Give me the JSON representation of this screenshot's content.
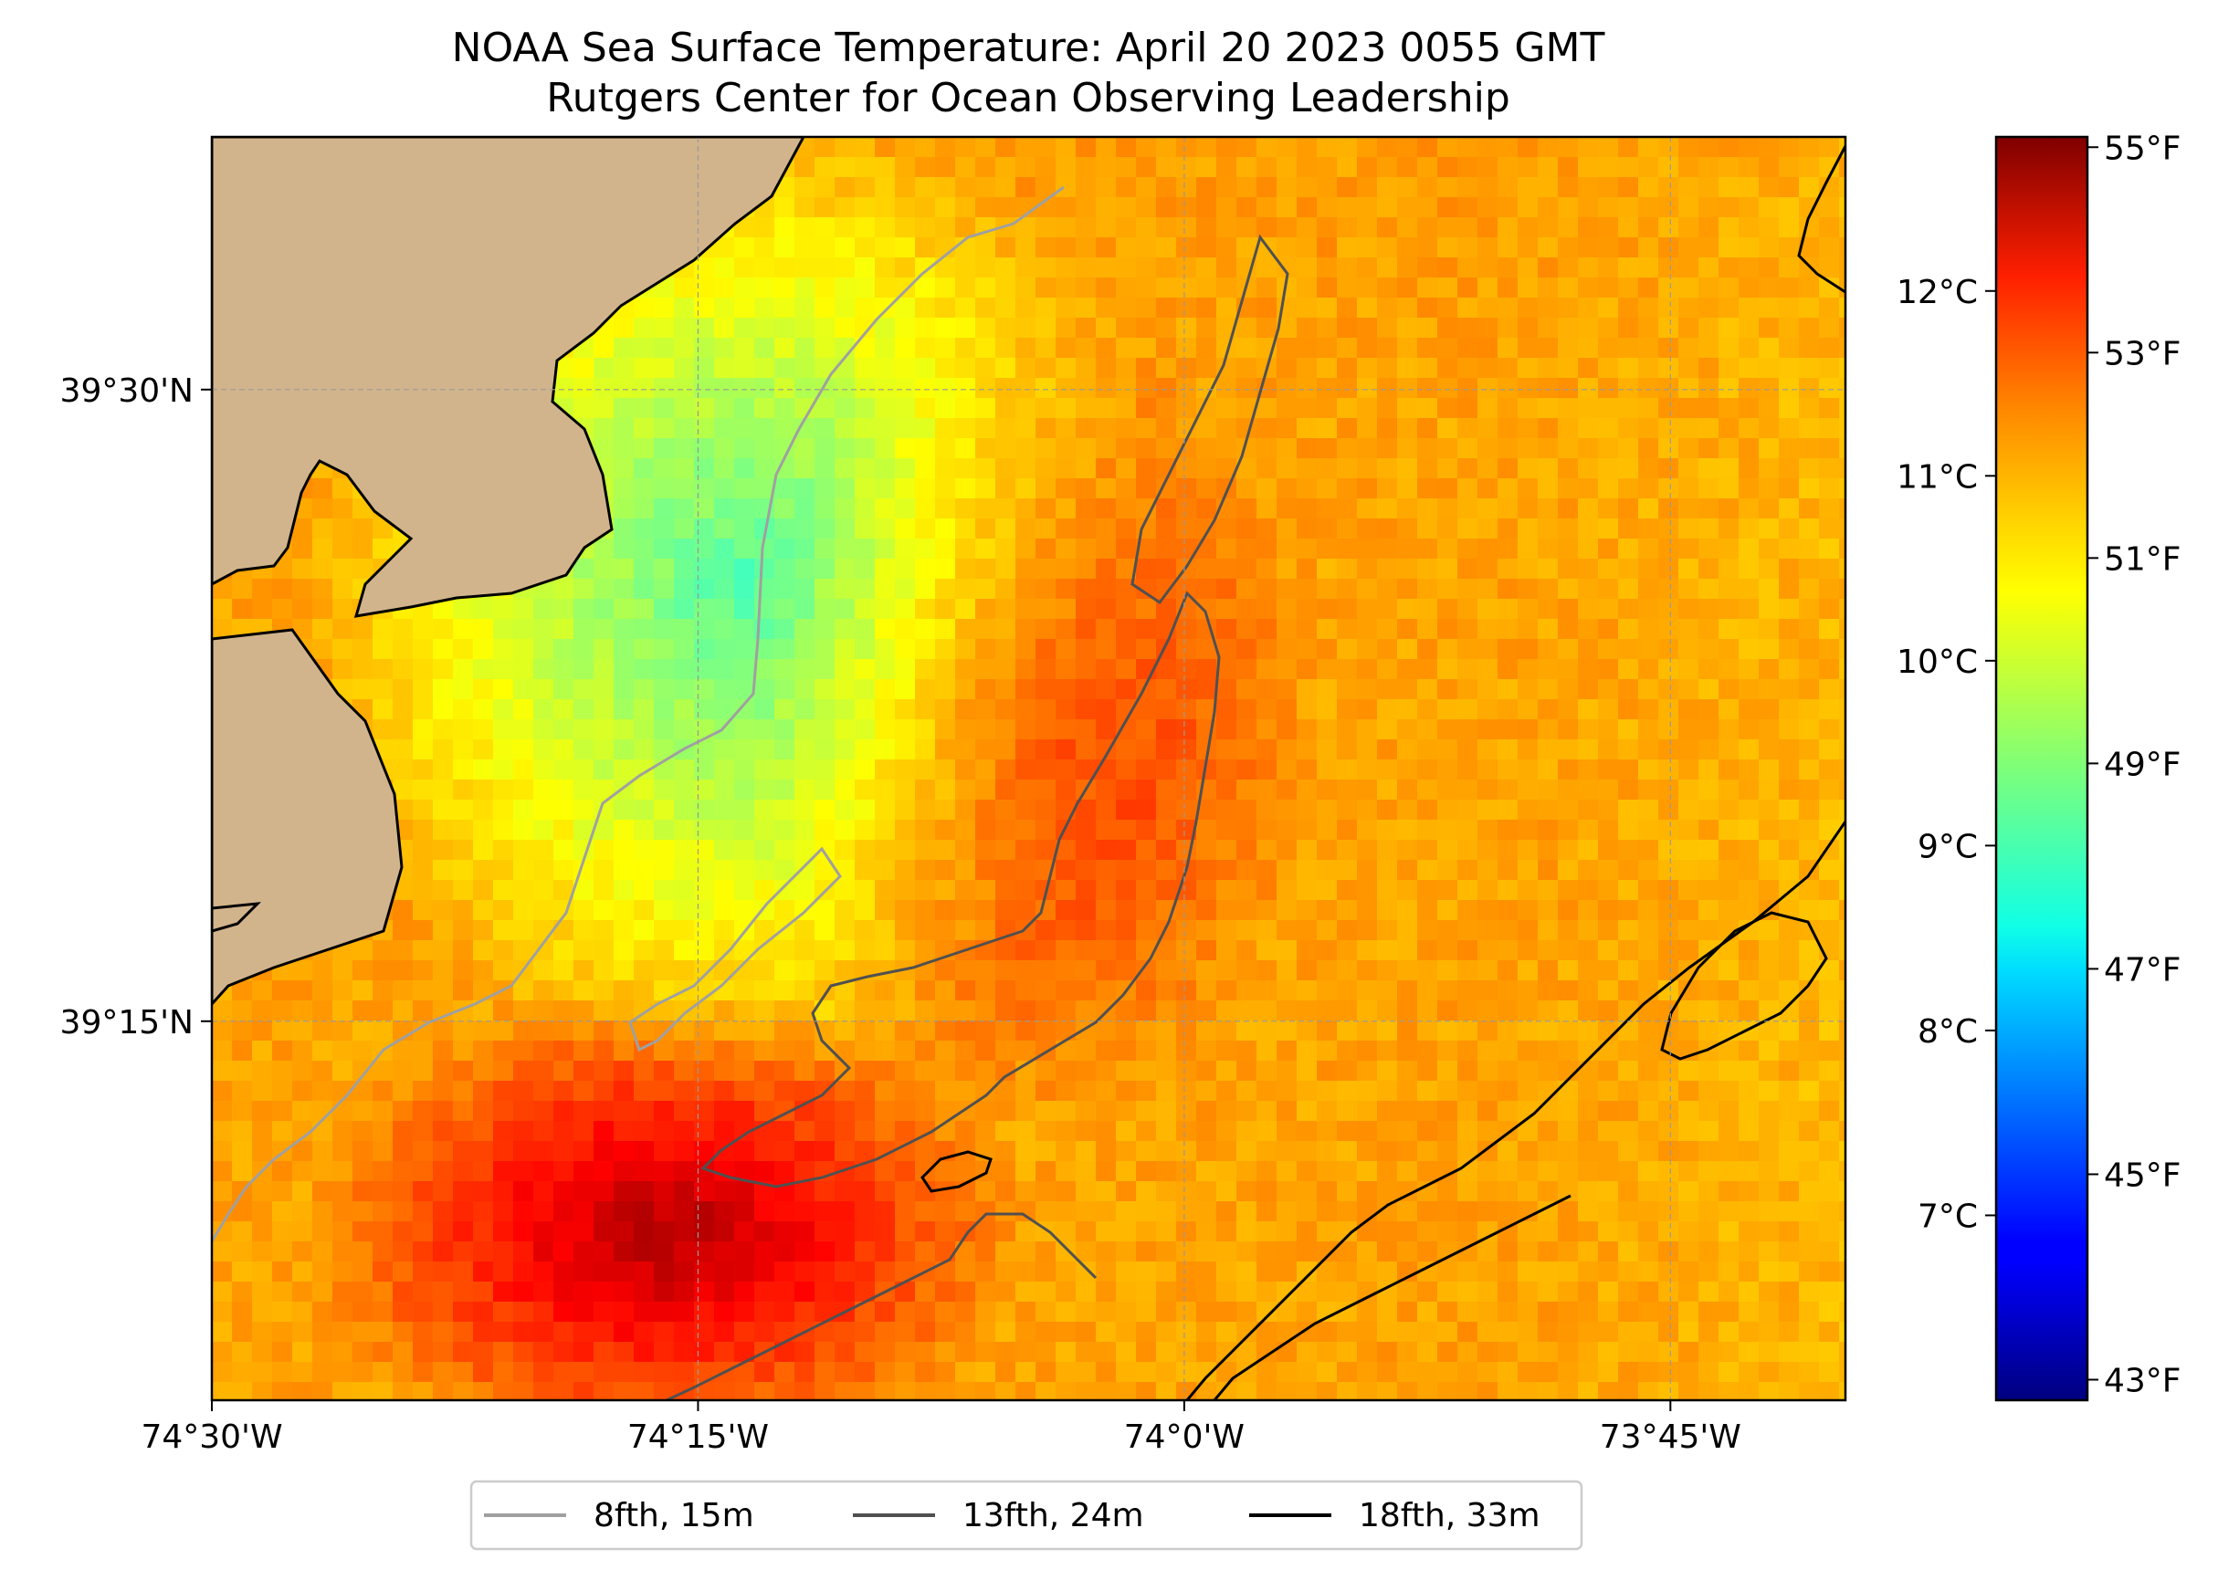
{
  "title": "NOAA Sea Surface Temperature: April 20 2023 0055 GMT",
  "subtitle": "Rutgers Center for Ocean Observing Leadership",
  "map": {
    "lon_range": [
      -74.5,
      -73.66
    ],
    "lat_range": [
      39.1,
      39.6
    ],
    "x_ticks": [
      {
        "value": -74.5,
        "label": "74°30'W"
      },
      {
        "value": -74.25,
        "label": "74°15'W"
      },
      {
        "value": -74.0,
        "label": "74°0'W"
      },
      {
        "value": -73.75,
        "label": "73°45'W"
      }
    ],
    "y_ticks": [
      {
        "value": 39.5,
        "label": "39°30'N"
      },
      {
        "value": 39.25,
        "label": "39°15'N"
      }
    ],
    "land_color": "#d2b48c",
    "grid": true
  },
  "colorbar": {
    "colormap": "jet",
    "range_f": [
      42.8,
      55.1
    ],
    "fahrenheit_ticks": [
      {
        "value": 55,
        "label": "55°F"
      },
      {
        "value": 53,
        "label": "53°F"
      },
      {
        "value": 51,
        "label": "51°F"
      },
      {
        "value": 49,
        "label": "49°F"
      },
      {
        "value": 47,
        "label": "47°F"
      },
      {
        "value": 45,
        "label": "45°F"
      },
      {
        "value": 43,
        "label": "43°F"
      }
    ],
    "celsius_ticks": [
      {
        "value": 12,
        "label": "12°C"
      },
      {
        "value": 11,
        "label": "11°C"
      },
      {
        "value": 10,
        "label": "10°C"
      },
      {
        "value": 9,
        "label": "9°C"
      },
      {
        "value": 8,
        "label": "8°C"
      },
      {
        "value": 7,
        "label": "7°C"
      }
    ]
  },
  "legend": [
    {
      "label": "8fth, 15m",
      "color": "#a0a0a0"
    },
    {
      "label": "13fth, 24m",
      "color": "#505050"
    },
    {
      "label": "18fth, 33m",
      "color": "#000000"
    }
  ]
}
